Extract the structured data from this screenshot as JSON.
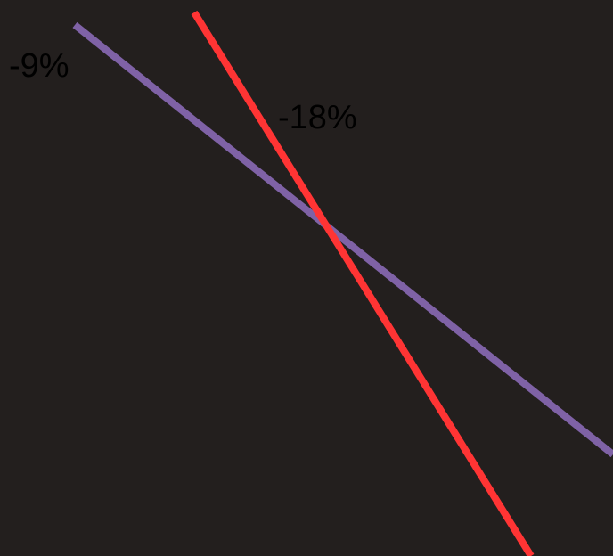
{
  "chart_data": {
    "type": "line",
    "title": "",
    "xlabel": "",
    "ylabel": "",
    "grid": false,
    "legend": "none",
    "background": "#231f1e",
    "series": [
      {
        "label": "-9%",
        "value": -9,
        "color": "#7f62a6"
      },
      {
        "label": "-18%",
        "value": -18,
        "color": "#ff3434"
      }
    ]
  }
}
